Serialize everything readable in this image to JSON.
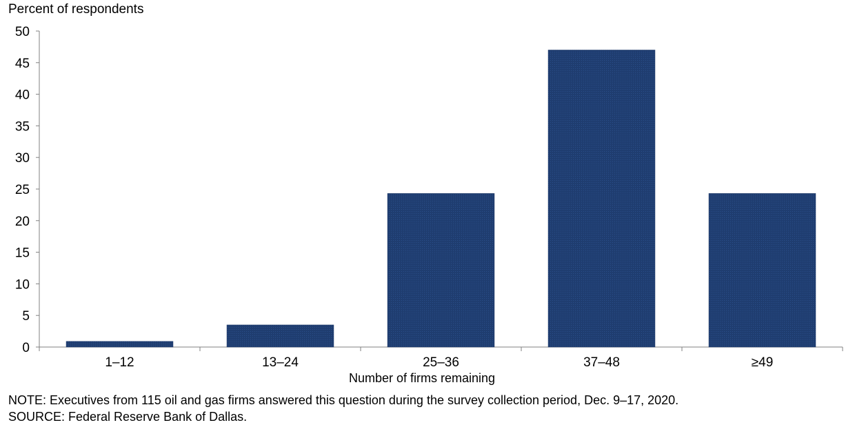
{
  "chart_data": {
    "type": "bar",
    "categories": [
      "1–12",
      "13–24",
      "25–36",
      "37–48",
      "≥49"
    ],
    "values": [
      0.9,
      3.5,
      24.3,
      47.0,
      24.3
    ],
    "title": "",
    "ylabel": "Percent of respondents",
    "xlabel": "Number  of firms remaining",
    "ylim": [
      0,
      50
    ],
    "yticks": [
      0,
      5,
      10,
      15,
      20,
      25,
      30,
      35,
      40,
      45,
      50
    ],
    "grid": false,
    "bar_color": "#1f3d70"
  },
  "notes": {
    "note": "NOTE: Executives from 115 oil and gas firms answered this question during the survey collection period, Dec. 9–17, 2020.",
    "source": "SOURCE: Federal Reserve Bank of Dallas."
  }
}
